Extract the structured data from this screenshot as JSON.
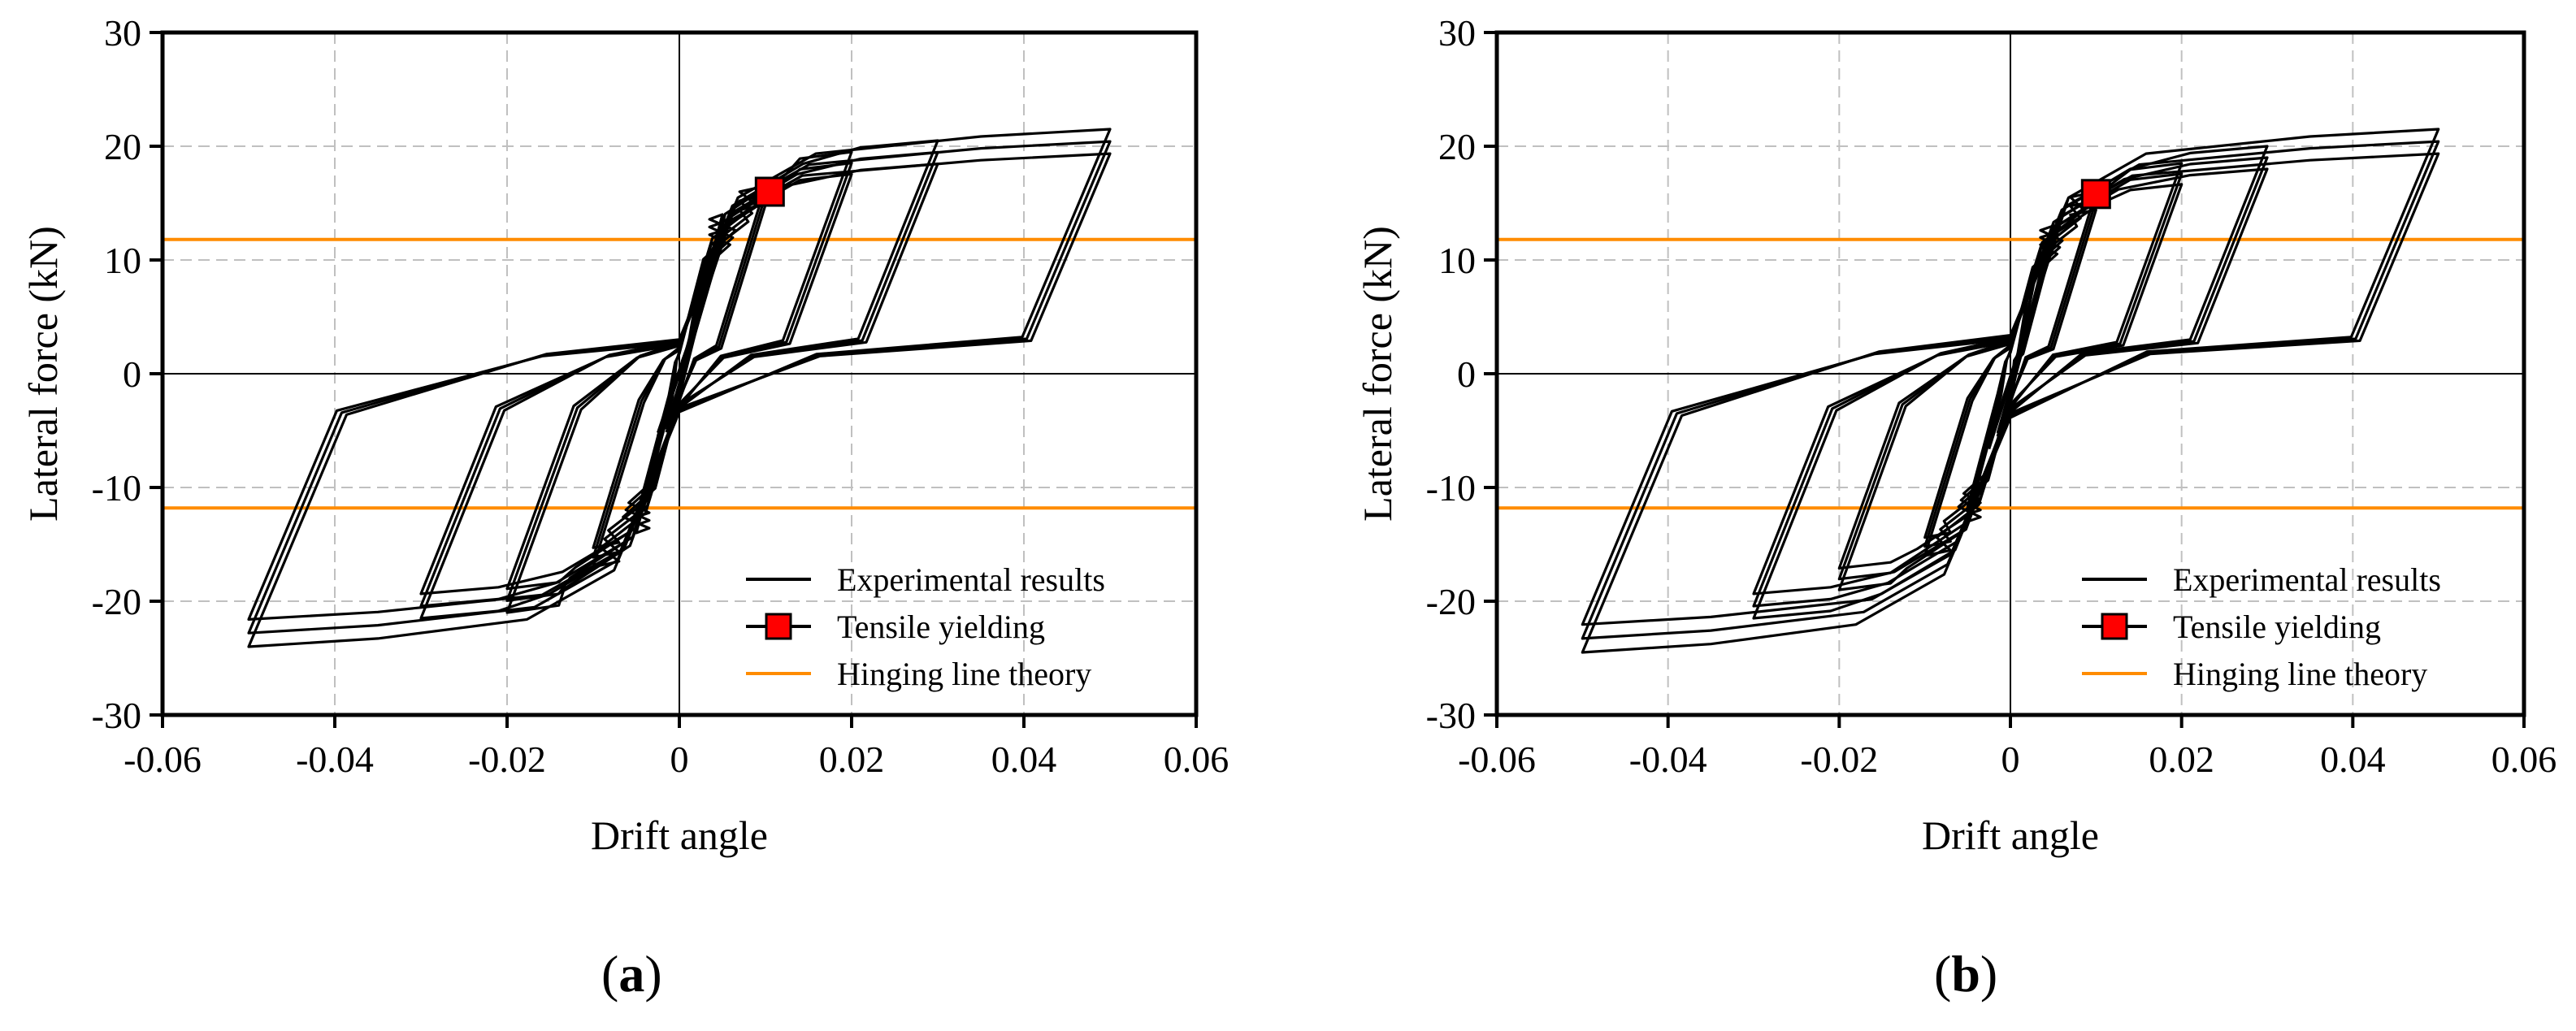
{
  "colors": {
    "curve": "#000000",
    "yield_marker_fill": "#ff0000",
    "hinging_line": "#ff8c00",
    "grid": "#c0c0c0"
  },
  "chart_data": [
    {
      "panel": "a",
      "type": "line",
      "title": "",
      "xlabel": "Drift angle",
      "ylabel": "Lateral force (kN)",
      "xlim": [
        -0.06,
        0.06
      ],
      "ylim": [
        -30,
        30
      ],
      "xticks": [
        -0.06,
        -0.04,
        -0.02,
        0,
        0.02,
        0.04,
        0.06
      ],
      "xtick_labels": [
        "-0.06",
        "-0.04",
        "-0.02",
        "0",
        "0.02",
        "0.04",
        "0.06"
      ],
      "yticks": [
        -30,
        -20,
        -10,
        0,
        10,
        20,
        30
      ],
      "ytick_labels": [
        "-30",
        "-20",
        "-10",
        "0",
        "10",
        "20",
        "30"
      ],
      "grid": true,
      "legend_position": "bottom-right",
      "series": [
        {
          "name": "Experimental results",
          "kind": "hysteresis",
          "loops": [
            {
              "amp": 0.005,
              "fmax": 14,
              "fmin": -14,
              "k": 3000,
              "pinch": 0.4
            },
            {
              "amp": 0.01,
              "fmax": 16.5,
              "fmin": -17,
              "k": 2600,
              "pinch": 0.4
            },
            {
              "amp": 0.02,
              "fmax": 19.5,
              "fmin": -21,
              "k": 2200,
              "pinch": 0.4
            },
            {
              "amp": 0.03,
              "fmax": 20.5,
              "fmin": -21.5,
              "k": 2000,
              "pinch": 0.4
            },
            {
              "amp": 0.05,
              "fmax": 21.5,
              "fmin": -24,
              "k": 1900,
              "pinch": 0.4
            }
          ]
        },
        {
          "name": "Tensile yielding",
          "kind": "marker",
          "x": [
            0.0105
          ],
          "y": [
            16
          ]
        },
        {
          "name": "Hinging line theory",
          "kind": "hline",
          "y": [
            11.8,
            -11.8
          ]
        }
      ],
      "panel_label": "(a)",
      "panel_letter": "a"
    },
    {
      "panel": "b",
      "type": "line",
      "title": "",
      "xlabel": "Drift angle",
      "ylabel": "Lateral force (kN)",
      "xlim": [
        -0.06,
        0.06
      ],
      "ylim": [
        -30,
        30
      ],
      "xticks": [
        -0.06,
        -0.04,
        -0.02,
        0,
        0.02,
        0.04,
        0.06
      ],
      "xtick_labels": [
        "-0.06",
        "-0.04",
        "-0.02",
        "0",
        "0.02",
        "0.04",
        "0.06"
      ],
      "yticks": [
        -30,
        -20,
        -10,
        0,
        10,
        20,
        30
      ],
      "ytick_labels": [
        "-30",
        "-20",
        "-10",
        "0",
        "10",
        "20",
        "30"
      ],
      "grid": true,
      "legend_position": "bottom-right",
      "series": [
        {
          "name": "Experimental results",
          "kind": "hysteresis",
          "loops": [
            {
              "amp": 0.005,
              "fmax": 13,
              "fmin": -13,
              "k": 3000,
              "pinch": 0.45
            },
            {
              "amp": 0.01,
              "fmax": 16,
              "fmin": -16,
              "k": 2600,
              "pinch": 0.45
            },
            {
              "amp": 0.02,
              "fmax": 18.5,
              "fmin": -19,
              "k": 2200,
              "pinch": 0.45
            },
            {
              "amp": 0.03,
              "fmax": 20,
              "fmin": -21.5,
              "k": 2000,
              "pinch": 0.45
            },
            {
              "amp": 0.05,
              "fmax": 21.5,
              "fmin": -24.5,
              "k": 1900,
              "pinch": 0.45
            }
          ]
        },
        {
          "name": "Tensile yielding",
          "kind": "marker",
          "x": [
            0.01
          ],
          "y": [
            15.8
          ]
        },
        {
          "name": "Hinging line theory",
          "kind": "hline",
          "y": [
            11.8,
            -11.8
          ]
        }
      ],
      "panel_label": "(b)",
      "panel_letter": "b"
    }
  ]
}
